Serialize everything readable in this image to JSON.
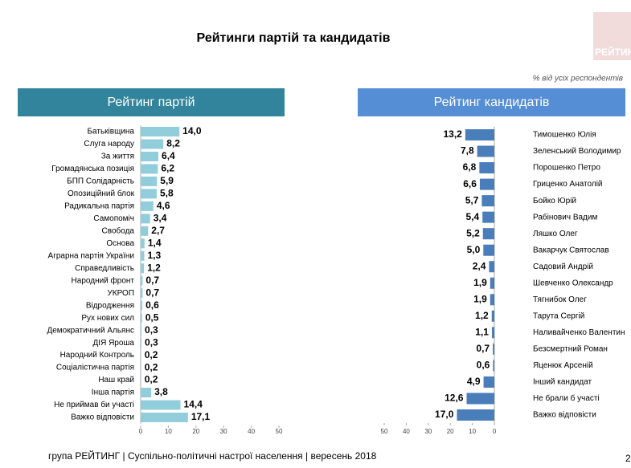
{
  "header": {
    "title": "Рейтинги партій та кандидатів",
    "note": "% від усіх респондентів",
    "logo": "РЕЙТИН"
  },
  "footer": {
    "text": "група РЕЙТИНГ |  Суспільно-політичні настрої населення | вересень  2018",
    "page": "2"
  },
  "chart_data": [
    {
      "type": "hbar",
      "title": "Рейтинг партій",
      "banner_color": "#31849b",
      "color": "#92cddc",
      "categories": [
        "Батьківщина",
        "Слуга народу",
        "За життя",
        "Громадянська позиція",
        "БПП Солідарність",
        "Опозиційний блок",
        "Радикальна партія",
        "Самопоміч",
        "Свобода",
        "Основа",
        "Аграрна партія України",
        "Справедливість",
        "Народний фронт",
        "УКРОП",
        "Відродження",
        "Рух нових сил",
        "Демократичний Альянс",
        "ДІЯ Яроша",
        "Народний Контроль",
        "Соціалістична партія",
        "Наш край",
        "Інша партія",
        "Не приймав би участі",
        "Важко відповісти"
      ],
      "values": [
        14.0,
        8.2,
        6.4,
        6.2,
        5.9,
        5.8,
        4.6,
        3.4,
        2.7,
        1.4,
        1.3,
        1.2,
        0.7,
        0.7,
        0.6,
        0.5,
        0.3,
        0.3,
        0.2,
        0.2,
        0.2,
        3.8,
        14.4,
        17.1
      ],
      "value_labels": [
        "14,0",
        "8,2",
        "6,4",
        "6,2",
        "5,9",
        "5,8",
        "4,6",
        "3,4",
        "2,7",
        "1,4",
        "1,3",
        "1,2",
        "0,7",
        "0,7",
        "0,6",
        "0,5",
        "0,3",
        "0,3",
        "0,2",
        "0,2",
        "0,2",
        "3,8",
        "14,4",
        "17,1"
      ],
      "xlim": [
        0,
        50
      ],
      "xticks": [
        0,
        10,
        20,
        30,
        40,
        50
      ]
    },
    {
      "type": "hbar",
      "title": "Рейтинг кандидатів",
      "banner_color": "#558ed5",
      "color": "#4a7ebb",
      "categories": [
        "Тимошенко Юлія",
        "Зеленський Володимир",
        "Порошенко Петро",
        "Гриценко Анатолій",
        "Бойко Юрій",
        "Рабінович Вадим",
        "Ляшко Олег",
        "Вакарчук Святослав",
        "Садовий Андрій",
        "Шевченко Олександр",
        "Тягнибок Олег",
        "Тарута Сергій",
        "Наливайченко Валентин",
        "Безсмертний Роман",
        "Яценюк Арсеній",
        "Інший кандидат",
        "Не брали б участі",
        "Важко відповісти"
      ],
      "values": [
        13.2,
        7.8,
        6.8,
        6.6,
        5.7,
        5.4,
        5.2,
        5.0,
        2.4,
        1.9,
        1.9,
        1.2,
        1.1,
        0.7,
        0.6,
        4.9,
        12.6,
        17.0
      ],
      "value_labels": [
        "13,2",
        "7,8",
        "6,8",
        "6,6",
        "5,7",
        "5,4",
        "5,2",
        "5,0",
        "2,4",
        "1,9",
        "1,9",
        "1,2",
        "1,1",
        "0,7",
        "0,6",
        "4,9",
        "12,6",
        "17,0"
      ],
      "xlim": [
        50,
        0
      ],
      "xticks": [
        50,
        40,
        30,
        20,
        10,
        0
      ]
    }
  ]
}
